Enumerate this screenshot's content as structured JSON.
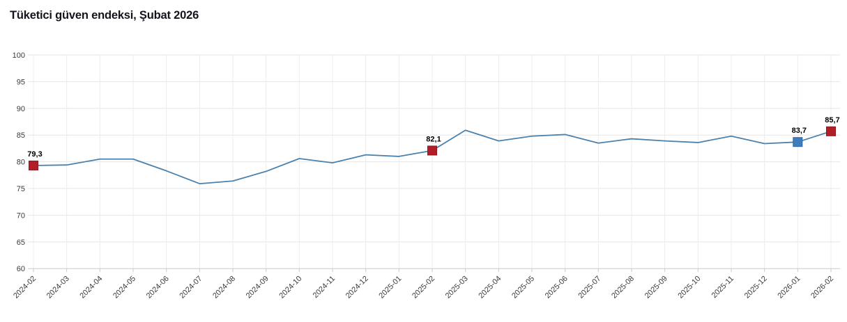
{
  "title": "Tüketici güven endeksi, Şubat 2026",
  "chart_data": {
    "type": "line",
    "title": "Tüketici güven endeksi, Şubat 2026",
    "xlabel": "",
    "ylabel": "",
    "ylim": [
      60,
      100
    ],
    "yticks": [
      100,
      95,
      90,
      85,
      80,
      75,
      70,
      65,
      60
    ],
    "grid": true,
    "legend": "none",
    "categories": [
      "2024-02",
      "2024-03",
      "2024-04",
      "2024-05",
      "2024-06",
      "2024-07",
      "2024-08",
      "2024-09",
      "2024-10",
      "2024-11",
      "2024-12",
      "2025-01",
      "2025-02",
      "2025-03",
      "2025-04",
      "2025-05",
      "2025-06",
      "2025-07",
      "2025-08",
      "2025-09",
      "2025-10",
      "2025-11",
      "2025-12",
      "2026-01",
      "2026-02"
    ],
    "series": [
      {
        "name": "Tüketici güven endeksi",
        "values": [
          79.3,
          79.4,
          80.5,
          80.5,
          78.3,
          75.9,
          76.4,
          78.2,
          80.6,
          79.8,
          81.3,
          81.0,
          82.1,
          85.9,
          83.9,
          84.8,
          85.1,
          83.5,
          84.3,
          83.9,
          83.6,
          84.8,
          83.4,
          83.7,
          85.7
        ]
      }
    ],
    "marked_points": [
      {
        "category": "2024-02",
        "index": 0,
        "value": 79.3,
        "label": "79,3",
        "fill": "#b21e27",
        "stroke": "#8f1720"
      },
      {
        "category": "2025-02",
        "index": 12,
        "value": 82.1,
        "label": "82,1",
        "fill": "#b21e27",
        "stroke": "#8f1720"
      },
      {
        "category": "2026-01",
        "index": 23,
        "value": 83.7,
        "label": "83,7",
        "fill": "#3d7ebd",
        "stroke": "#2d66a0"
      },
      {
        "category": "2026-02",
        "index": 24,
        "value": 85.7,
        "label": "85,7",
        "fill": "#b21e27",
        "stroke": "#8f1720"
      }
    ],
    "colors": {
      "line": "#4a81ad",
      "grid_horizontal": "#e6e6e6",
      "grid_vertical": "#ececec",
      "axis_line": "#c9c9c9",
      "tick_text": "#3a3a3a",
      "data_label": "#000000",
      "background": "#ffffff"
    }
  }
}
